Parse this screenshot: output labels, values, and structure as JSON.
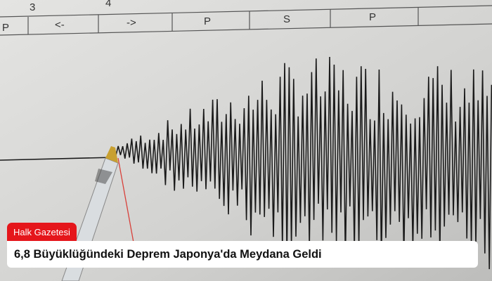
{
  "image": {
    "scale_numbers": [
      "3",
      "4"
    ],
    "scale_cells": [
      "P",
      "<-",
      "->",
      "P",
      "S",
      "P"
    ],
    "colors": {
      "paper": "#d4d4d2",
      "trace": "#1a1a1a",
      "marker": "#d8403a",
      "pen_tip": "#c8a030"
    }
  },
  "overlay": {
    "source": "Halk Gazetesi",
    "headline": "6,8 Büyüklüğündeki Deprem Japonya'da Meydana Geldi",
    "badge_color": "#e5161b"
  }
}
